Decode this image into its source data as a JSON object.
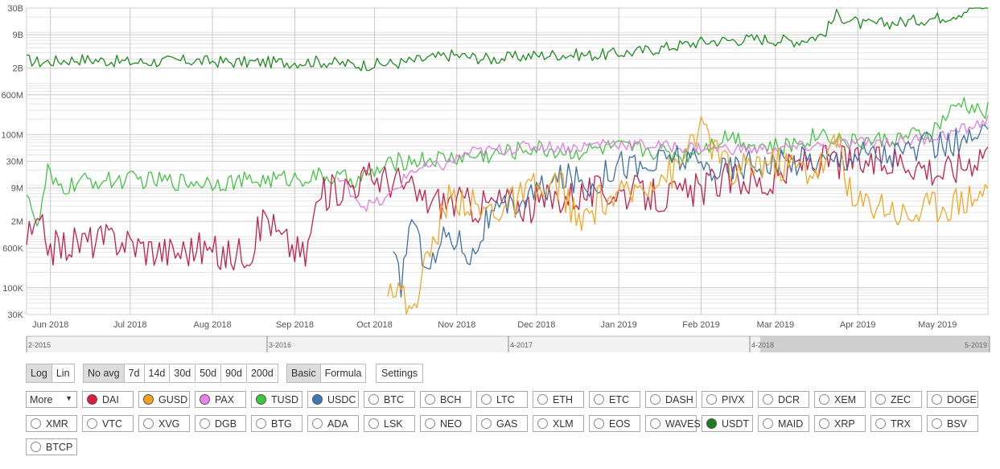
{
  "chart_data": {
    "type": "line",
    "y_scale": "log",
    "grid": true,
    "y_ticks": [
      "30K",
      "100K",
      "600K",
      "2M",
      "9M",
      "30M",
      "100M",
      "600M",
      "2B",
      "9B",
      "30B"
    ],
    "x_tick_labels": [
      "Jun 2018",
      "Jul 2018",
      "Aug 2018",
      "Sep 2018",
      "Oct 2018",
      "Nov 2018",
      "Dec 2018",
      "Jan 2019",
      "Feb 2019",
      "Mar 2019",
      "Apr 2019",
      "May 2019"
    ],
    "navigator_labels": [
      "2-2015",
      "3-2016",
      "4-2017",
      "4-2018",
      "5-2019"
    ],
    "x_range": [
      "2018-05-23",
      "2019-05-20"
    ],
    "y_range": [
      30000,
      30000000000
    ],
    "series": [
      {
        "name": "USDT",
        "color": "#1e8b1e",
        "start": "2018-05-23",
        "keypoints": [
          [
            0,
            2900000000.0
          ],
          [
            5,
            2600000000.0
          ],
          [
            20,
            3000000000.0
          ],
          [
            40,
            2600000000.0
          ],
          [
            60,
            2800000000.0
          ],
          [
            80,
            2600000000.0
          ],
          [
            100,
            2600000000.0
          ],
          [
            110,
            2700000000.0
          ],
          [
            125,
            2300000000.0
          ],
          [
            140,
            2500000000.0
          ],
          [
            160,
            3600000000.0
          ],
          [
            175,
            3000000000.0
          ],
          [
            190,
            3500000000.0
          ],
          [
            200,
            3700000000.0
          ],
          [
            215,
            3600000000.0
          ],
          [
            230,
            4200000000.0
          ],
          [
            255,
            6600000000.0
          ],
          [
            275,
            7500000000.0
          ],
          [
            290,
            6800000000.0
          ],
          [
            300,
            9000000000.0
          ],
          [
            305,
            22000000000.0
          ],
          [
            315,
            14000000000.0
          ],
          [
            330,
            16000000000.0
          ],
          [
            345,
            20000000000.0
          ],
          [
            350,
            23000000000.0
          ],
          [
            356,
            31000000000.0
          ],
          [
            362,
            33000000000.0
          ]
        ],
        "noise": 0.12
      },
      {
        "name": "TUSD",
        "color": "#44c444",
        "start": "2018-05-23",
        "keypoints": [
          [
            0,
            9000000.0
          ],
          [
            2,
            4000000.0
          ],
          [
            4,
            1200000.0
          ],
          [
            6,
            5000000.0
          ],
          [
            8,
            20000000.0
          ],
          [
            10,
            10000000.0
          ],
          [
            15,
            9000000.0
          ],
          [
            20,
            12000000.0
          ],
          [
            40,
            13000000.0
          ],
          [
            60,
            12000000.0
          ],
          [
            80,
            12000000.0
          ],
          [
            100,
            14000000.0
          ],
          [
            110,
            15000000.0
          ],
          [
            125,
            13000000.0
          ],
          [
            140,
            30000000.0
          ],
          [
            160,
            35000000.0
          ],
          [
            175,
            40000000.0
          ],
          [
            190,
            55000000.0
          ],
          [
            205,
            45000000.0
          ],
          [
            220,
            55000000.0
          ],
          [
            235,
            50000000.0
          ],
          [
            248,
            40000000.0
          ],
          [
            258,
            70000000.0
          ],
          [
            265,
            100000000.0
          ],
          [
            275,
            60000000.0
          ],
          [
            285,
            55000000.0
          ],
          [
            300,
            110000000.0
          ],
          [
            310,
            70000000.0
          ],
          [
            325,
            80000000.0
          ],
          [
            340,
            100000000.0
          ],
          [
            352,
            430000000.0
          ],
          [
            358,
            280000000.0
          ],
          [
            362,
            300000000.0
          ]
        ],
        "noise": 0.18
      },
      {
        "name": "DAI",
        "color": "#c4204a",
        "start": "2018-05-23",
        "keypoints": [
          [
            0,
            900000.0
          ],
          [
            5,
            1500000.0
          ],
          [
            10,
            600000.0
          ],
          [
            20,
            800000.0
          ],
          [
            35,
            900000.0
          ],
          [
            45,
            600000.0
          ],
          [
            55,
            500000.0
          ],
          [
            65,
            600000.0
          ],
          [
            75,
            400000.0
          ],
          [
            85,
            600000.0
          ],
          [
            90,
            3000000.0
          ],
          [
            95,
            1000000.0
          ],
          [
            105,
            400000.0
          ],
          [
            110,
            6000000.0
          ],
          [
            120,
            10000000.0
          ],
          [
            130,
            15000000.0
          ],
          [
            140,
            12000000.0
          ],
          [
            150,
            5000000.0
          ],
          [
            160,
            5000000.0
          ],
          [
            170,
            4000000.0
          ],
          [
            180,
            5000000.0
          ],
          [
            190,
            4000000.0
          ],
          [
            200,
            6000000.0
          ],
          [
            210,
            7000000.0
          ],
          [
            220,
            8000000.0
          ],
          [
            230,
            7000000.0
          ],
          [
            240,
            6000000.0
          ],
          [
            250,
            7000000.0
          ],
          [
            260,
            12000000.0
          ],
          [
            270,
            14000000.0
          ],
          [
            280,
            10000000.0
          ],
          [
            290,
            28000000.0
          ],
          [
            300,
            30000000.0
          ],
          [
            310,
            30000000.0
          ],
          [
            320,
            26000000.0
          ],
          [
            330,
            33000000.0
          ],
          [
            340,
            22000000.0
          ],
          [
            345,
            18000000.0
          ],
          [
            352,
            25000000.0
          ],
          [
            358,
            40000000.0
          ],
          [
            362,
            60000000.0
          ]
        ],
        "noise": 0.35
      },
      {
        "name": "PAX",
        "color": "#e27ee2",
        "start": "2018-09-17",
        "keypoints": [
          [
            0,
            14000000.0
          ],
          [
            5,
            8000000.0
          ],
          [
            10,
            4000000.0
          ],
          [
            18,
            5000000.0
          ],
          [
            28,
            20000000.0
          ],
          [
            40,
            25000000.0
          ],
          [
            50,
            45000000.0
          ],
          [
            60,
            50000000.0
          ],
          [
            75,
            60000000.0
          ],
          [
            90,
            55000000.0
          ],
          [
            100,
            70000000.0
          ],
          [
            120,
            60000000.0
          ],
          [
            140,
            55000000.0
          ],
          [
            160,
            50000000.0
          ],
          [
            180,
            60000000.0
          ],
          [
            200,
            70000000.0
          ],
          [
            215,
            75000000.0
          ],
          [
            230,
            100000000.0
          ],
          [
            240,
            150000000.0
          ],
          [
            245,
            190000000.0
          ]
        ],
        "noise": 0.12
      },
      {
        "name": "USDC",
        "color": "#3f6fa8",
        "start": "2018-10-08",
        "keypoints": [
          [
            0,
            350000.0
          ],
          [
            3,
            120000.0
          ],
          [
            7,
            3000000.0
          ],
          [
            10,
            600000.0
          ],
          [
            15,
            300000.0
          ],
          [
            20,
            1200000.0
          ],
          [
            25,
            800000.0
          ],
          [
            30,
            400000.0
          ],
          [
            35,
            2000000.0
          ],
          [
            45,
            4000000.0
          ],
          [
            55,
            8000000.0
          ],
          [
            65,
            15000000.0
          ],
          [
            75,
            10000000.0
          ],
          [
            85,
            30000000.0
          ],
          [
            95,
            20000000.0
          ],
          [
            105,
            40000000.0
          ],
          [
            115,
            25000000.0
          ],
          [
            125,
            20000000.0
          ],
          [
            135,
            30000000.0
          ],
          [
            145,
            25000000.0
          ],
          [
            155,
            35000000.0
          ],
          [
            165,
            30000000.0
          ],
          [
            175,
            45000000.0
          ],
          [
            185,
            40000000.0
          ],
          [
            195,
            50000000.0
          ],
          [
            205,
            60000000.0
          ],
          [
            215,
            70000000.0
          ],
          [
            224,
            90000000.0
          ]
        ],
        "noise": 0.3
      },
      {
        "name": "GUSD",
        "color": "#f0a826",
        "start": "2018-10-06",
        "keypoints": [
          [
            0,
            150000.0
          ],
          [
            5,
            80000.0
          ],
          [
            8,
            30000.0
          ],
          [
            12,
            120000.0
          ],
          [
            18,
            1000000.0
          ],
          [
            22,
            5000000.0
          ],
          [
            28,
            6000000.0
          ],
          [
            35,
            3000000.0
          ],
          [
            45,
            4000000.0
          ],
          [
            55,
            8000000.0
          ],
          [
            60,
            7000000.0
          ],
          [
            65,
            12000000.0
          ],
          [
            72,
            1500000.0
          ],
          [
            80,
            5000000.0
          ],
          [
            90,
            6000000.0
          ],
          [
            100,
            15000000.0
          ],
          [
            110,
            20000000.0
          ],
          [
            115,
            120000000.0
          ],
          [
            120,
            100000000.0
          ],
          [
            130,
            15000000.0
          ],
          [
            140,
            30000000.0
          ],
          [
            150,
            25000000.0
          ],
          [
            160,
            20000000.0
          ],
          [
            165,
            30000000.0
          ],
          [
            170,
            90000000.0
          ],
          [
            175,
            4000000.0
          ],
          [
            185,
            5000000.0
          ],
          [
            195,
            2500000.0
          ],
          [
            205,
            4000000.0
          ],
          [
            215,
            5000000.0
          ],
          [
            225,
            8000000.0
          ],
          [
            235,
            9000000.0
          ],
          [
            245,
            10000000.0
          ],
          [
            255,
            20000000.0
          ],
          [
            265,
            35000000.0
          ],
          [
            270,
            40000000.0
          ]
        ],
        "noise": 0.35
      }
    ]
  },
  "controls": {
    "scale_buttons": [
      "Log",
      "Lin"
    ],
    "avg_buttons": [
      "No avg",
      "7d",
      "14d",
      "30d",
      "50d",
      "90d",
      "200d"
    ],
    "mode_buttons": [
      "Basic",
      "Formula"
    ],
    "settings_label": "Settings",
    "more_label": "More",
    "more_arrow": "▼"
  },
  "coins": [
    {
      "label": "DAI",
      "color": "#dc1e3c",
      "on": true
    },
    {
      "label": "GUSD",
      "color": "#f5a01e",
      "on": true
    },
    {
      "label": "PAX",
      "color": "#ee82ee",
      "on": true
    },
    {
      "label": "TUSD",
      "color": "#3cc83c",
      "on": true
    },
    {
      "label": "USDC",
      "color": "#3c78b4",
      "on": true
    },
    {
      "label": "BTC",
      "on": false
    },
    {
      "label": "BCH",
      "on": false
    },
    {
      "label": "LTC",
      "on": false
    },
    {
      "label": "ETH",
      "on": false
    },
    {
      "label": "ETC",
      "on": false
    },
    {
      "label": "DASH",
      "on": false
    },
    {
      "label": "PIVX",
      "on": false
    },
    {
      "label": "DCR",
      "on": false
    },
    {
      "label": "XEM",
      "on": false
    },
    {
      "label": "ZEC",
      "on": false
    },
    {
      "label": "DOGE",
      "on": false
    },
    {
      "label": "XMR",
      "on": false
    },
    {
      "label": "VTC",
      "on": false
    },
    {
      "label": "XVG",
      "on": false
    },
    {
      "label": "DGB",
      "on": false
    },
    {
      "label": "BTG",
      "on": false
    },
    {
      "label": "ADA",
      "on": false
    },
    {
      "label": "LSK",
      "on": false
    },
    {
      "label": "NEO",
      "on": false
    },
    {
      "label": "GAS",
      "on": false
    },
    {
      "label": "XLM",
      "on": false
    },
    {
      "label": "EOS",
      "on": false
    },
    {
      "label": "WAVES",
      "on": false
    },
    {
      "label": "USDT",
      "color": "#1e7d1e",
      "on": true
    },
    {
      "label": "MAID",
      "on": false
    },
    {
      "label": "XRP",
      "on": false
    },
    {
      "label": "TRX",
      "on": false
    },
    {
      "label": "BSV",
      "on": false
    },
    {
      "label": "BTCP",
      "on": false
    }
  ]
}
